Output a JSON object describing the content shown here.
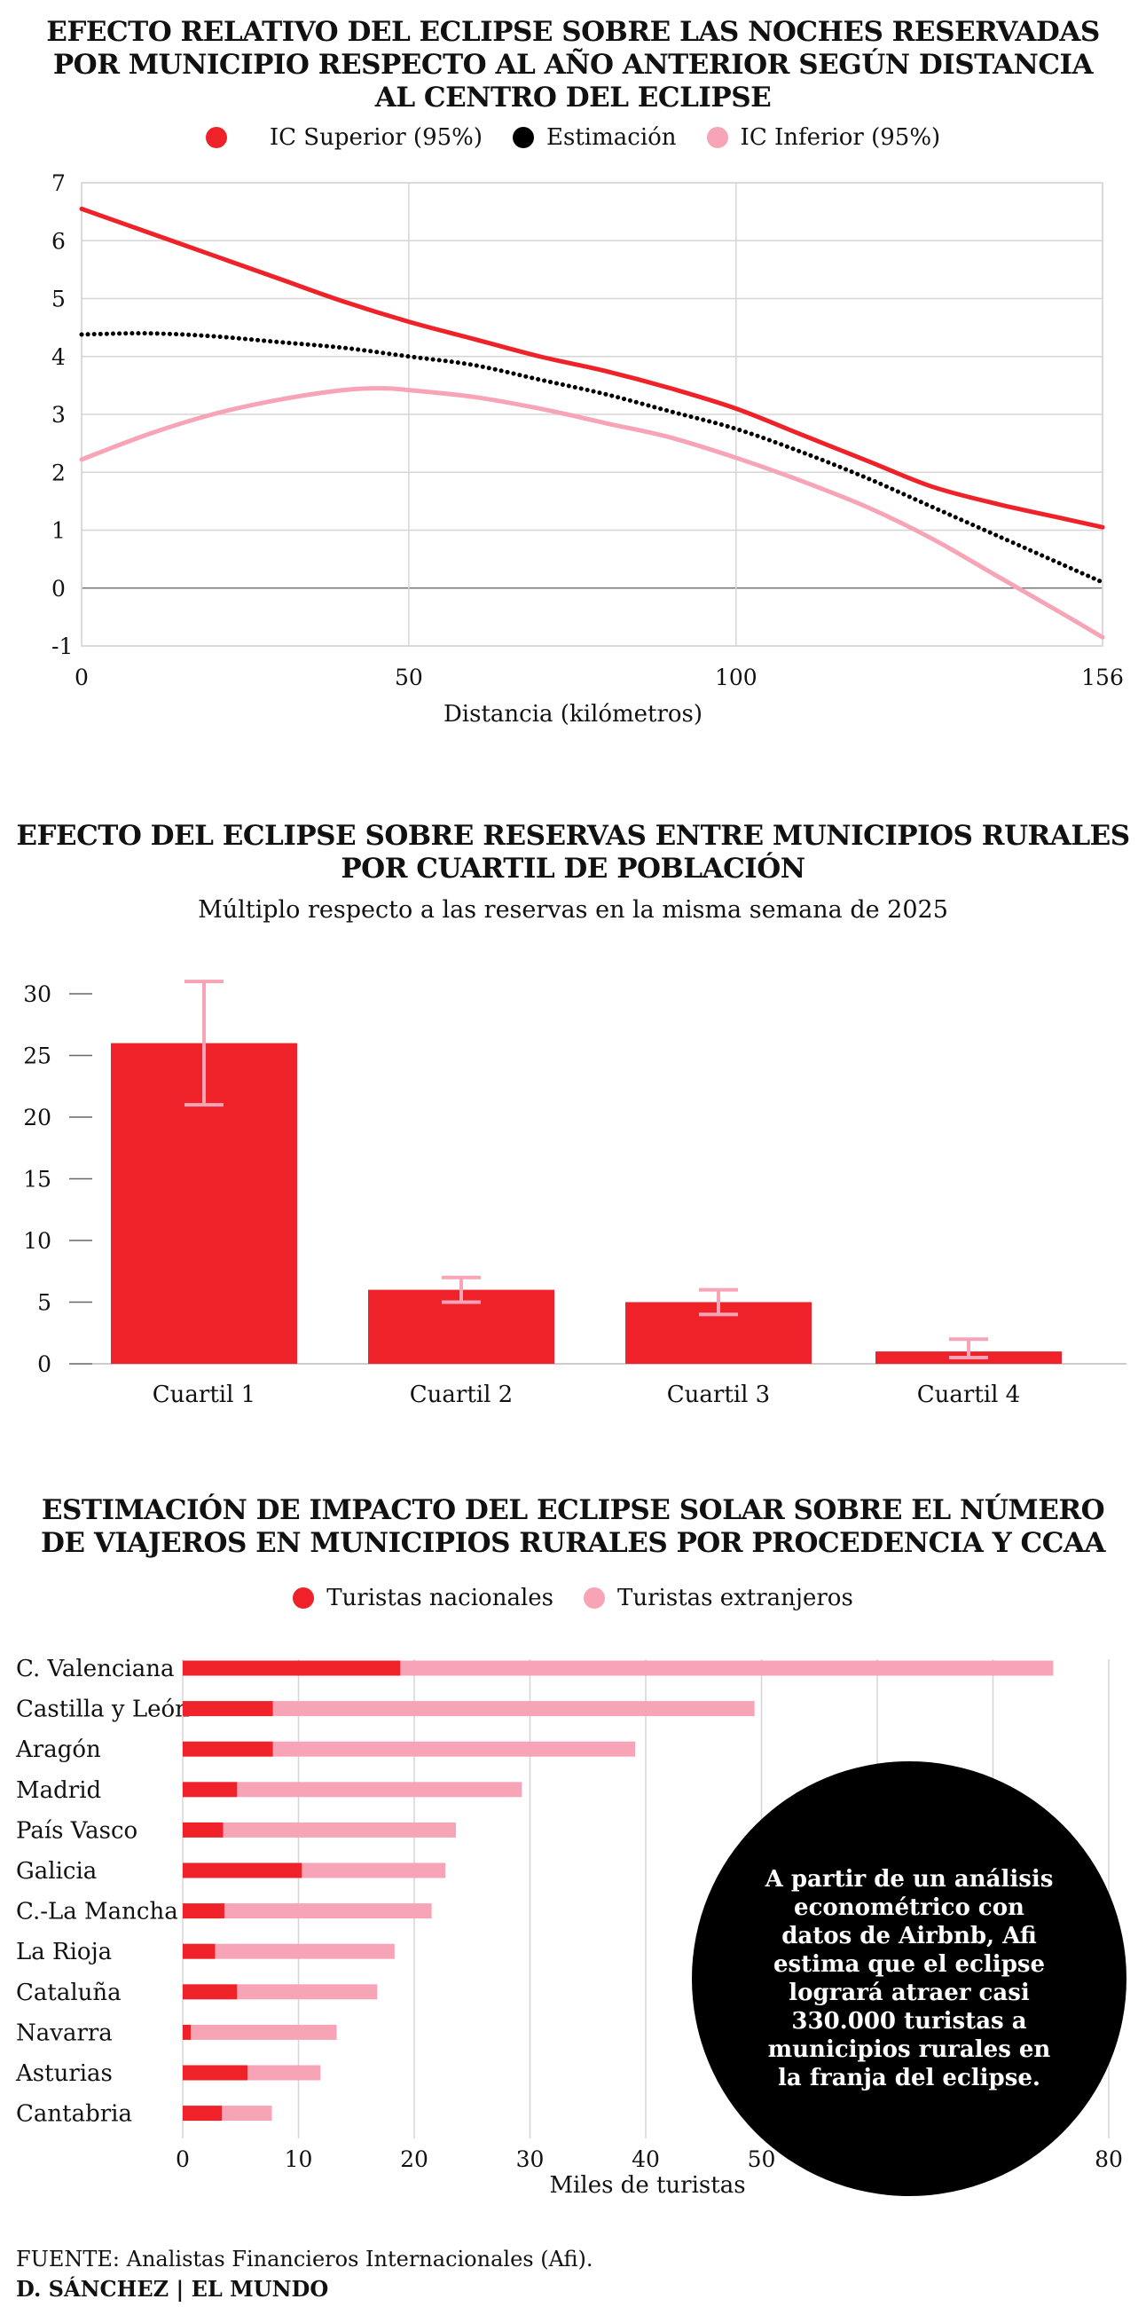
{
  "colors": {
    "red": "#ee2228",
    "pink": "#f7a4b6",
    "black": "#000000",
    "grid": "#d5d5d5"
  },
  "chart1": {
    "title": "EFECTO RELATIVO DEL ECLIPSE SOBRE LAS NOCHES RESERVADAS\nPOR MUNICIPIO RESPECTO AL AÑO ANTERIOR SEGÚN DISTANCIA\nAL CENTRO DEL ECLIPSE",
    "legend": [
      "IC Superior (95%)",
      "Estimación",
      "IC Inferior (95%)"
    ],
    "xlabel": "Distancia (kilómetros)"
  },
  "chart2": {
    "title": "EFECTO DEL ECLIPSE SOBRE RESERVAS ENTRE MUNICIPIOS RURALES\nPOR CUARTIL DE POBLACIÓN",
    "subtitle": "Múltiplo respecto a las reservas en la misma semana de 2025"
  },
  "chart3": {
    "title": "ESTIMACIÓN DE IMPACTO DEL ECLIPSE SOLAR SOBRE EL NÚMERO\nDE VIAJEROS EN MUNICIPIOS RURALES POR PROCEDENCIA Y CCAA",
    "legend": [
      "Turistas nacionales",
      "Turistas extranjeros"
    ],
    "xlabel": "Miles de turistas"
  },
  "annotation": "A partir de un análisis econométrico con datos de Airbnb, Afi estima que el eclipse logrará atraer casi 330.000 turistas a municipios rurales en la franja del eclipse.",
  "source": "FUENTE: Analistas Financieros Internacionales (Afi).",
  "credit": "D. SÁNCHEZ | EL MUNDO",
  "chart_data": [
    {
      "type": "line",
      "title": "EFECTO RELATIVO DEL ECLIPSE SOBRE LAS NOCHES RESERVADAS POR MUNICIPIO RESPECTO AL AÑO ANTERIOR SEGÚN DISTANCIA AL CENTRO DEL ECLIPSE",
      "xlabel": "Distancia (kilómetros)",
      "ylabel": "",
      "xlim": [
        0,
        156
      ],
      "ylim": [
        -1,
        7
      ],
      "xticks": [
        0,
        50,
        100,
        156
      ],
      "yticks": [
        -1,
        0,
        1,
        2,
        3,
        4,
        5,
        6,
        7
      ],
      "grid": true,
      "legend_position": "top",
      "series": [
        {
          "name": "IC Superior (95%)",
          "color": "#ee2228",
          "style": "solid",
          "x": [
            0,
            10,
            20,
            30,
            40,
            50,
            60,
            70,
            80,
            90,
            100,
            110,
            120,
            130,
            140,
            150,
            156
          ],
          "y": [
            6.55,
            6.15,
            5.75,
            5.35,
            4.95,
            4.6,
            4.3,
            4.0,
            3.75,
            3.45,
            3.1,
            2.65,
            2.2,
            1.75,
            1.45,
            1.2,
            1.05
          ]
        },
        {
          "name": "Estimación",
          "color": "#000000",
          "style": "dotted",
          "x": [
            0,
            10,
            20,
            30,
            40,
            50,
            60,
            70,
            80,
            90,
            100,
            110,
            120,
            130,
            140,
            150,
            156
          ],
          "y": [
            4.38,
            4.4,
            4.35,
            4.25,
            4.15,
            4.0,
            3.85,
            3.6,
            3.35,
            3.05,
            2.75,
            2.35,
            1.9,
            1.4,
            0.9,
            0.4,
            0.1
          ]
        },
        {
          "name": "IC Inferior (95%)",
          "color": "#f7a4b6",
          "style": "solid",
          "x": [
            0,
            10,
            20,
            30,
            40,
            46,
            50,
            60,
            70,
            80,
            90,
            100,
            110,
            120,
            130,
            140,
            150,
            156
          ],
          "y": [
            2.22,
            2.65,
            3.0,
            3.25,
            3.42,
            3.45,
            3.42,
            3.3,
            3.1,
            2.85,
            2.6,
            2.25,
            1.85,
            1.4,
            0.85,
            0.2,
            -0.45,
            -0.85
          ]
        }
      ]
    },
    {
      "type": "bar",
      "title": "EFECTO DEL ECLIPSE SOBRE RESERVAS ENTRE MUNICIPIOS RURALES POR CUARTIL DE POBLACIÓN",
      "subtitle": "Múltiplo respecto a las reservas en la misma semana de 2025",
      "categories": [
        "Cuartil 1",
        "Cuartil 2",
        "Cuartil 3",
        "Cuartil 4"
      ],
      "values": [
        26,
        6,
        5,
        1
      ],
      "error_low": [
        21,
        5,
        4,
        0.5
      ],
      "error_high": [
        31,
        7,
        6,
        2
      ],
      "ylim": [
        0,
        30
      ],
      "yticks": [
        0,
        5,
        10,
        15,
        20,
        25,
        30
      ],
      "grid": false
    },
    {
      "type": "bar",
      "orientation": "horizontal",
      "stacked": true,
      "title": "ESTIMACIÓN DE IMPACTO DEL ECLIPSE SOLAR SOBRE EL NÚMERO DE VIAJEROS EN MUNICIPIOS RURALES POR PROCEDENCIA Y CCAA",
      "xlabel": "Miles de turistas",
      "xlim": [
        0,
        80
      ],
      "xticks": [
        0,
        10,
        20,
        30,
        40,
        50,
        60,
        70,
        80
      ],
      "grid": true,
      "legend_position": "top",
      "categories": [
        "C. Valenciana",
        "Castilla y León",
        "Aragón",
        "Madrid",
        "País Vasco",
        "Galicia",
        "C.-La Mancha",
        "La Rioja",
        "Cataluña",
        "Navarra",
        "Asturias",
        "Cantabria"
      ],
      "series": [
        {
          "name": "Turistas nacionales",
          "color": "#ee2228",
          "values": [
            18.8,
            7.8,
            7.8,
            4.7,
            3.5,
            10.3,
            3.6,
            2.8,
            4.7,
            0.7,
            5.6,
            3.4
          ]
        },
        {
          "name": "Turistas extranjeros",
          "color": "#f7a4b6",
          "values": [
            56.4,
            41.6,
            31.3,
            24.6,
            20.1,
            12.4,
            17.9,
            15.5,
            12.1,
            12.6,
            6.3,
            4.3
          ]
        }
      ]
    }
  ]
}
